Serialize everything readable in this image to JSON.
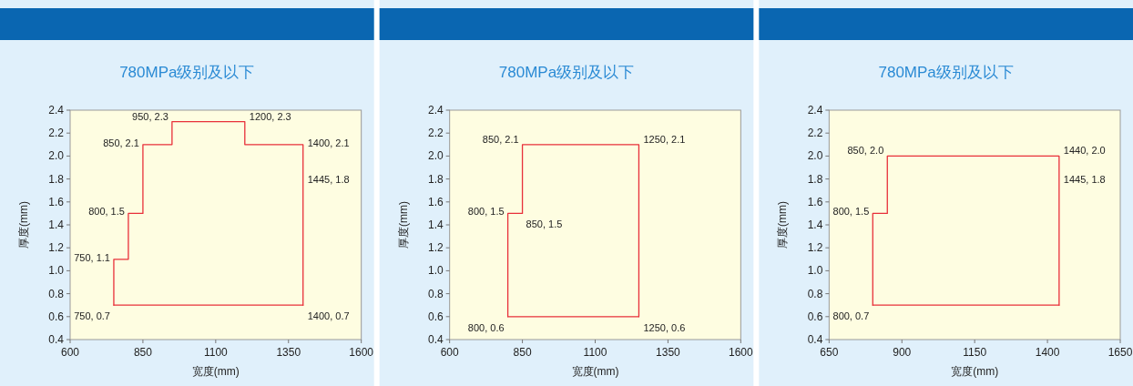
{
  "chart_data": [
    {
      "type": "line",
      "title": "780MPa级别及以下",
      "xlabel": "宽度(mm)",
      "ylabel": "厚度(mm)",
      "marker": "none",
      "grid": false,
      "legend": false,
      "series": [
        {
          "color": "#e8303a",
          "x": [
            750,
            750,
            800,
            800,
            850,
            850,
            950,
            950,
            1200,
            1200,
            1400,
            1400
          ],
          "values": [
            0.7,
            1.1,
            1.1,
            1.5,
            1.5,
            2.1,
            2.1,
            2.3,
            2.3,
            2.1,
            2.1,
            0.7
          ]
        },
        {
          "color": "#e8303a",
          "x": [
            750,
            1400
          ],
          "values": [
            0.7,
            0.7
          ]
        }
      ],
      "xlim": [
        600,
        1600
      ],
      "xticks": [
        600,
        850,
        1100,
        1350,
        1600
      ],
      "ylim": [
        0.4,
        2.4
      ],
      "yticks": [
        {
          "value": 0.4,
          "label": "0.4"
        },
        {
          "value": 0.6,
          "label": "0.6"
        },
        {
          "value": 0.8,
          "label": "0.8"
        },
        {
          "value": 1.0,
          "label": "1.0"
        },
        {
          "value": 1.2,
          "label": "1.2"
        },
        {
          "value": 1.4,
          "label": "1.4"
        },
        {
          "value": 1.6,
          "label": "1.6"
        },
        {
          "value": 1.8,
          "label": "1.8"
        },
        {
          "value": 2.0,
          "label": "2.0"
        },
        {
          "value": 2.2,
          "label": "2.2"
        },
        {
          "value": 2.4,
          "label": "2.4"
        }
      ],
      "annotations": [
        {
          "text": "750, 0.7",
          "x": 750,
          "y": 0.7
        },
        {
          "text": "750, 1.1",
          "x": 750,
          "y": 1.1
        },
        {
          "text": "800, 1.5",
          "x": 800,
          "y": 1.5
        },
        {
          "text": "850, 2.1",
          "x": 850,
          "y": 2.1
        },
        {
          "text": "950, 2.3",
          "x": 950,
          "y": 2.3
        },
        {
          "text": "1200, 2.3",
          "x": 1200,
          "y": 2.3
        },
        {
          "text": "1400, 2.1",
          "x": 1400,
          "y": 2.1
        },
        "1445, 1.8",
        {
          "text": "1400, 0.7",
          "x": 1400,
          "y": 0.7
        }
      ]
    },
    {
      "type": "line",
      "title": "780MPa级别及以下",
      "xlabel": "宽度(mm)",
      "ylabel": "厚度(mm)",
      "marker": "none",
      "grid": false,
      "legend": false,
      "series": [
        {
          "color": "#e8303a",
          "x": [
            800,
            800,
            850,
            850,
            1250,
            1250
          ],
          "values": [
            0.6,
            1.5,
            1.5,
            2.1,
            2.1,
            0.6
          ]
        },
        {
          "color": "#e8303a",
          "x": [
            800,
            1250
          ],
          "values": [
            0.6,
            0.6
          ]
        }
      ],
      "xlim": [
        600,
        1600
      ],
      "xticks": [
        600,
        850,
        1100,
        1350,
        1600
      ],
      "ylim": [
        0.4,
        2.4
      ],
      "yticks": [
        {
          "value": 0.4,
          "label": "0.4"
        },
        {
          "value": 0.6,
          "label": "0.6"
        },
        {
          "value": 0.8,
          "label": "0.8"
        },
        {
          "value": 1.0,
          "label": "1.0"
        },
        {
          "value": 1.2,
          "label": "1.2"
        },
        {
          "value": 1.4,
          "label": "1.4"
        },
        {
          "value": 1.6,
          "label": "1.6"
        },
        {
          "value": 1.8,
          "label": "1.8"
        },
        {
          "value": 2.0,
          "label": "2.0"
        },
        {
          "value": 2.2,
          "label": "2.2"
        },
        {
          "value": 2.4,
          "label": "2.4"
        }
      ],
      "annotations": [
        {
          "text": "800, 0.6",
          "x": 800,
          "y": 0.6
        },
        {
          "text": "800, 1.5",
          "x": 800,
          "y": 1.5
        },
        {
          "text": "850, 1.5",
          "x": 850,
          "y": 1.5
        },
        {
          "text": "850, 2.1",
          "x": 850,
          "y": 2.1
        },
        {
          "text": "1250, 2.1",
          "x": 1250,
          "y": 2.1
        },
        {
          "text": "1250, 0.6",
          "x": 1250,
          "y": 0.6
        }
      ]
    },
    {
      "type": "line",
      "title": "780MPa级别及以下",
      "xlabel": "宽度(mm)",
      "ylabel": "厚度(mm)",
      "marker": "none",
      "grid": false,
      "legend": false,
      "series": [
        {
          "color": "#e8303a",
          "x": [
            800,
            800,
            850,
            850,
            1440,
            1440
          ],
          "values": [
            0.7,
            1.5,
            1.5,
            2.0,
            2.0,
            0.7
          ]
        },
        {
          "color": "#e8303a",
          "x": [
            800,
            1440
          ],
          "values": [
            0.7,
            0.7
          ]
        }
      ],
      "xlim": [
        650,
        1650
      ],
      "xticks": [
        650,
        900,
        1150,
        1400,
        1650
      ],
      "ylim": [
        0.4,
        2.4
      ],
      "yticks": [
        {
          "value": 0.4,
          "label": "0.4"
        },
        {
          "value": 0.6,
          "label": "0.6"
        },
        {
          "value": 0.8,
          "label": "0.8"
        },
        {
          "value": 1.0,
          "label": "1.0"
        },
        {
          "value": 1.2,
          "label": "1.2"
        },
        {
          "value": 1.4,
          "label": "1.4"
        },
        {
          "value": 1.6,
          "label": "1.6"
        },
        {
          "value": 1.8,
          "label": "1.8"
        },
        {
          "value": 2.0,
          "label": "2.0"
        },
        {
          "value": 2.2,
          "label": "2.2"
        },
        {
          "value": 2.4,
          "label": "2.4"
        }
      ],
      "annotations": [
        {
          "text": "800, 0.7",
          "x": 800,
          "y": 0.7
        },
        {
          "text": "800, 1.5",
          "x": 800,
          "y": 1.5
        },
        {
          "text": "850, 2.0",
          "x": 850,
          "y": 2.0
        },
        {
          "text": "1440, 2.0",
          "x": 1440,
          "y": 2.0
        },
        "1445, 1.8"
      ]
    }
  ]
}
